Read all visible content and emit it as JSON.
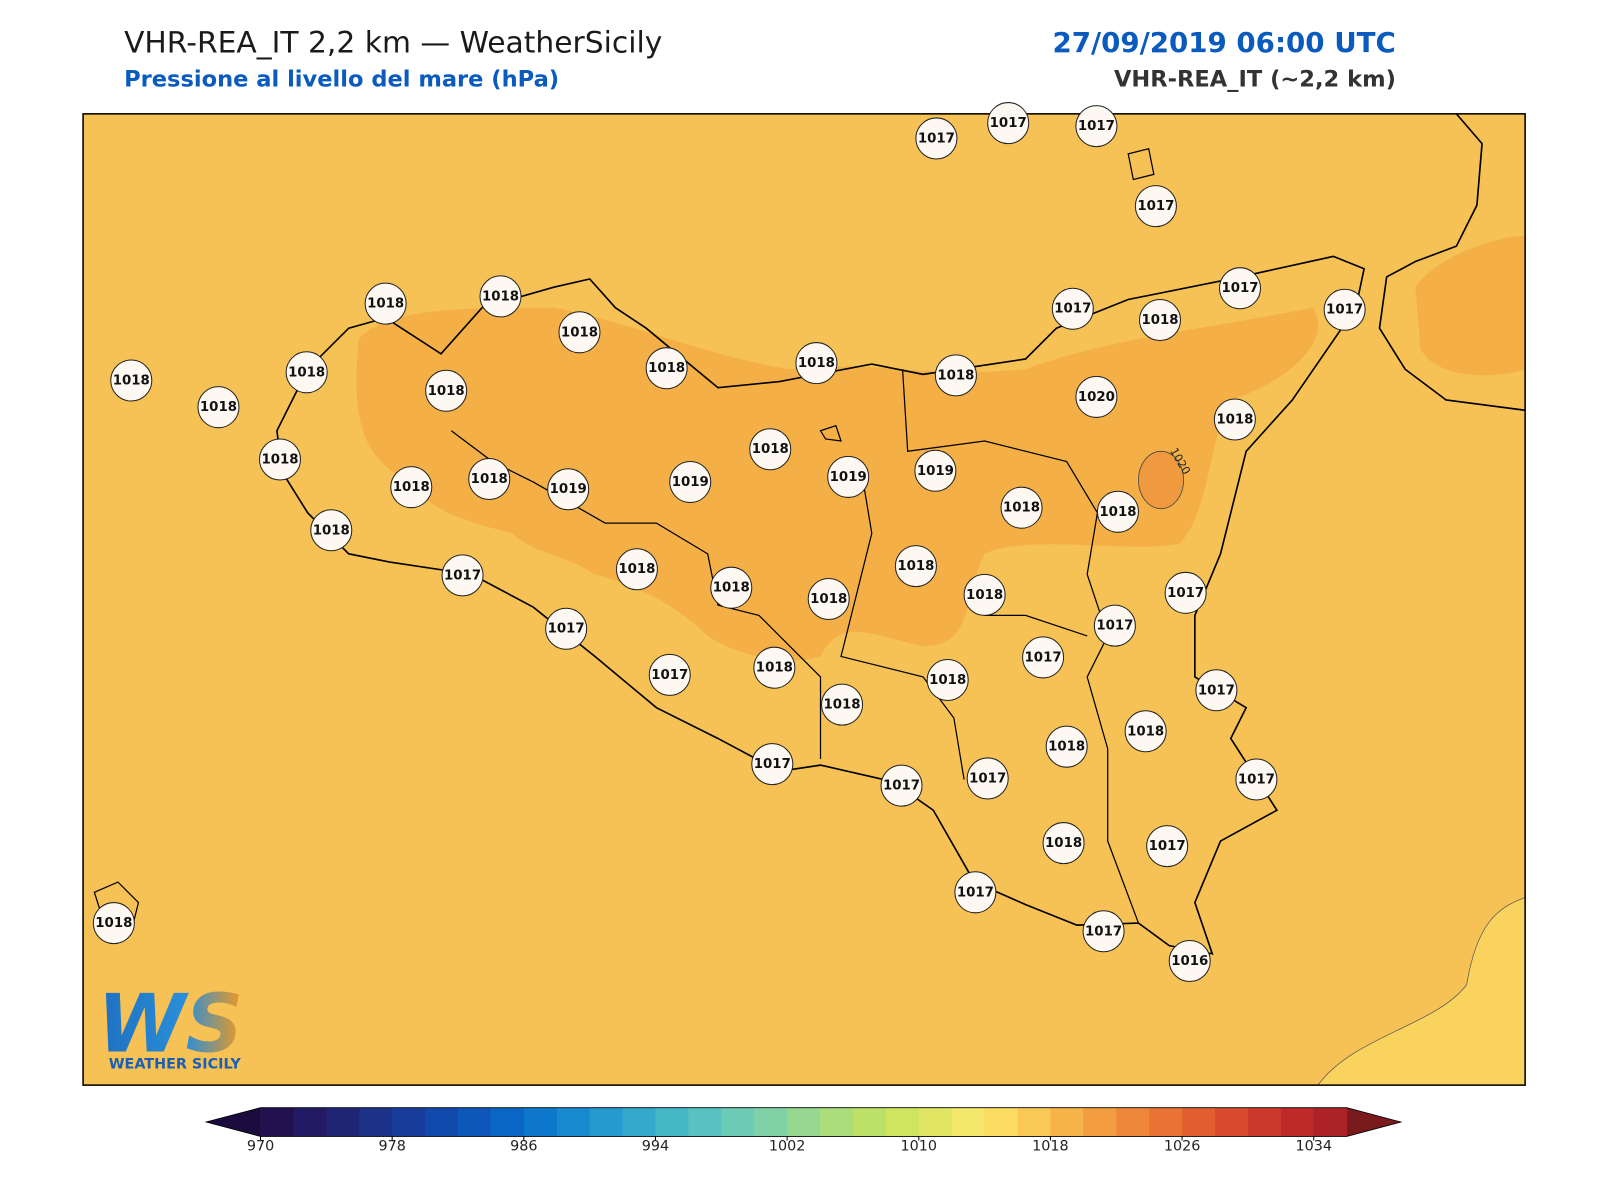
{
  "header": {
    "title": "VHR-REA_IT 2,2 km — WeatherSicily",
    "subtitle": "Pressione al livello del mare (hPa)",
    "datetime": "27/09/2019 06:00 UTC",
    "model": "VHR-REA_IT (~2,2 km)"
  },
  "map": {
    "contour_label": "1020",
    "pressure_labels": [
      1017,
      1017,
      1017,
      1017,
      1018,
      1018,
      1018,
      1018,
      1018,
      1018,
      1017,
      1018,
      1017,
      1017,
      1018,
      1018,
      1018,
      1018,
      1020,
      1018,
      1018,
      1018,
      1018,
      1018,
      1019,
      1019,
      1019,
      1019,
      1018,
      1018,
      1018,
      1017,
      1018,
      1018,
      1018,
      1018,
      1018,
      1017,
      1017,
      1017,
      1017,
      1017,
      1018,
      1018,
      1017,
      1018,
      1018,
      1018,
      1017,
      1017,
      1017,
      1017,
      1018,
      1017,
      1017,
      1017,
      1016,
      1018
    ]
  },
  "logo": {
    "mark": "WS",
    "name": "WEATHER SICILY"
  },
  "colorbar": {
    "ticks": [
      970,
      978,
      986,
      994,
      1002,
      1010,
      1018,
      1026,
      1034
    ],
    "colors": [
      "#23104f",
      "#221a63",
      "#1f2474",
      "#1c3188",
      "#173d9b",
      "#1249ad",
      "#0d57bb",
      "#0a66c4",
      "#0d78cb",
      "#1789cf",
      "#249acf",
      "#33aacc",
      "#45b8c8",
      "#57c2c0",
      "#6bcbb5",
      "#80d2a6",
      "#96d890",
      "#abdd7a",
      "#bde167",
      "#cfe45f",
      "#e0e663",
      "#f2e66b",
      "#fddc62",
      "#fac955",
      "#f6b349",
      "#f29d3f",
      "#ee8739",
      "#e97334",
      "#e25e2f",
      "#d84b2c",
      "#cb392a",
      "#bd2a28",
      "#ad2226"
    ],
    "under_color": "#1c0c3e",
    "over_color": "#7a1a1c"
  }
}
